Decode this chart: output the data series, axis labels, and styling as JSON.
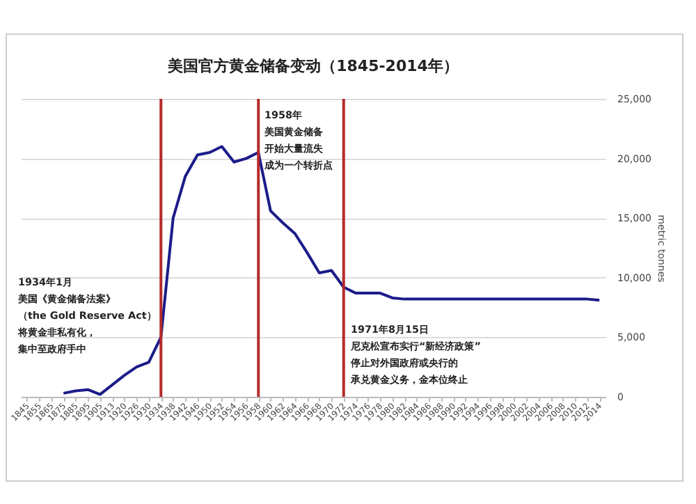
{
  "chart_data": {
    "type": "line",
    "title": "美国官方黄金储备变动（1845-2014年）",
    "y2label": "metric tonnes",
    "categories": [
      "1845",
      "1855",
      "1865",
      "1875",
      "1885",
      "1895",
      "1905",
      "1913",
      "1920",
      "1926",
      "1930",
      "1934",
      "1938",
      "1942",
      "1946",
      "1950",
      "1952",
      "1954",
      "1956",
      "1958",
      "1960",
      "1962",
      "1964",
      "1966",
      "1968",
      "1970",
      "1972",
      "1974",
      "1976",
      "1978",
      "1980",
      "1982",
      "1984",
      "1986",
      "1988",
      "1990",
      "1992",
      "1994",
      "1996",
      "1998",
      "2000",
      "2002",
      "2004",
      "2006",
      "2008",
      "2010",
      "2012",
      "2014"
    ],
    "series": [
      {
        "color": "#1c1c8a",
        "axis": "y2",
        "values": [
          null,
          null,
          null,
          300,
          500,
          600,
          200,
          1000,
          1800,
          2500,
          2900,
          5000,
          15000,
          18500,
          20300,
          20500,
          21000,
          19700,
          20000,
          20500,
          15600,
          14600,
          13700,
          12100,
          10400,
          10600,
          9200,
          8700,
          8700,
          8700,
          8300,
          8200,
          8200,
          8200,
          8200,
          8200,
          8200,
          8200,
          8200,
          8200,
          8200,
          8200,
          8200,
          8200,
          8200,
          8200,
          8200,
          8100
        ]
      }
    ],
    "y2lim": [
      0,
      25000
    ],
    "y2ticks": [
      0,
      {
        "value": 5000,
        "label": "5,000"
      },
      {
        "value": 10000,
        "label": "10,000"
      },
      {
        "value": 15000,
        "label": "15,000"
      },
      {
        "value": 20000,
        "label": "20,000"
      },
      {
        "value": 25000,
        "label": "25,000"
      }
    ],
    "grid": "y",
    "marker": "none",
    "line_style": "solid",
    "ref_lines": [
      {
        "axis": "x",
        "value": "1934",
        "color": "#b52a2a"
      },
      {
        "axis": "x",
        "value": "1958",
        "color": "#b52a2a"
      },
      {
        "axis": "x",
        "value": "1972",
        "color": "#b52a2a"
      }
    ],
    "annotations": [
      "1934年1月",
      "美国《黄金储备法案》",
      "（the Gold Reserve Act）",
      "将黄金非私有化，",
      "集中至政府手中",
      "1958年",
      "美国黄金储备",
      "开始大量流失",
      "成为一个转折点",
      "1971年8月15日",
      "尼克松宣布实行“新经济政策”",
      "停止对外国政府或央行的",
      "承兑黄金义务，金本位终止"
    ]
  }
}
